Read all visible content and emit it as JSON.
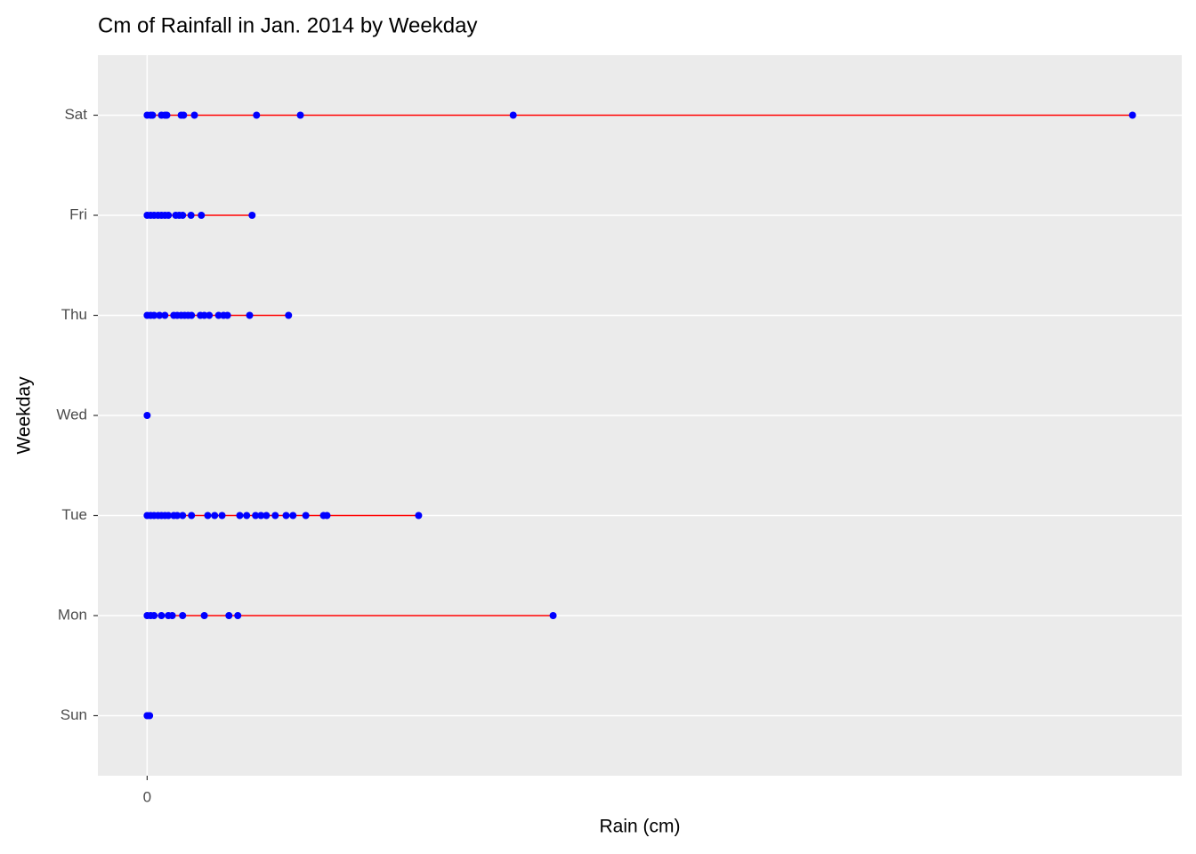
{
  "chart_data": {
    "type": "strip",
    "title": "Cm of Rainfall in Jan. 2014 by Weekday",
    "x_label": "Rain (cm)",
    "y_label": "Weekday",
    "categories": [
      "Sun",
      "Mon",
      "Tue",
      "Wed",
      "Thu",
      "Fri",
      "Sat"
    ],
    "values": [
      [
        0,
        0.005
      ],
      [
        0,
        0.007,
        0.014,
        0.029,
        0.043,
        0.051,
        0.072,
        0.116,
        0.166,
        0.184,
        0.824
      ],
      [
        0,
        0.007,
        0.014,
        0.022,
        0.029,
        0.036,
        0.043,
        0.054,
        0.061,
        0.072,
        0.09,
        0.123,
        0.137,
        0.152,
        0.188,
        0.202,
        0.22,
        0.231,
        0.242,
        0.26,
        0.282,
        0.296,
        0.322,
        0.358,
        0.365,
        0.551
      ],
      [
        0
      ],
      [
        0,
        0.007,
        0.014,
        0.025,
        0.036,
        0.054,
        0.061,
        0.069,
        0.076,
        0.083,
        0.09,
        0.108,
        0.116,
        0.126,
        0.145,
        0.155,
        0.163,
        0.208,
        0.287
      ],
      [
        0,
        0.007,
        0.014,
        0.022,
        0.029,
        0.036,
        0.043,
        0.058,
        0.065,
        0.072,
        0.089,
        0.11,
        0.213
      ],
      [
        0,
        0.007,
        0.011,
        0.029,
        0.036,
        0.04,
        0.069,
        0.074,
        0.096,
        0.222,
        0.311,
        0.743,
        2.0
      ]
    ],
    "xlim": [
      -0.1,
      2.1
    ],
    "xticks": [
      0
    ],
    "line_color": "#ff0000",
    "point_color": "#0000ff",
    "grid": true
  }
}
